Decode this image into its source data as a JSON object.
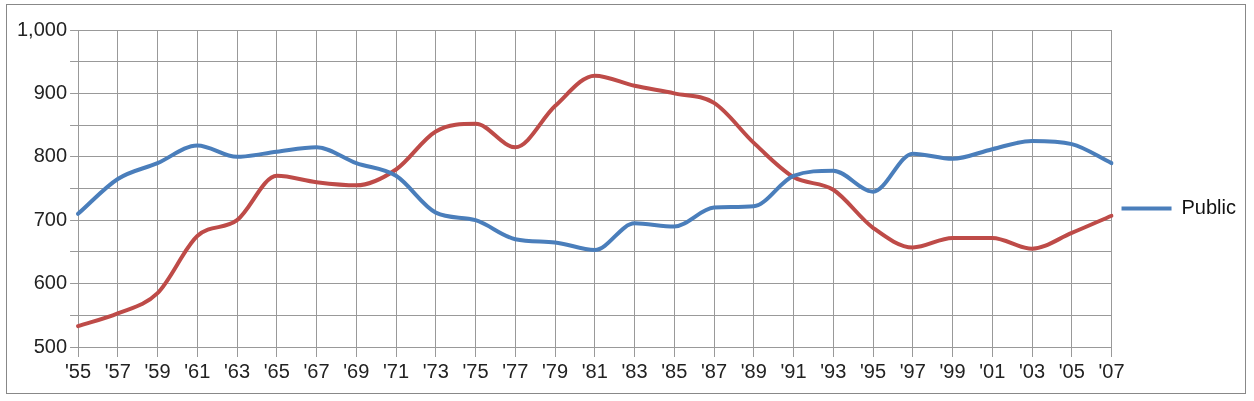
{
  "chart_data": {
    "type": "line",
    "categories": [
      "'55",
      "'57",
      "'59",
      "'61",
      "'63",
      "'65",
      "'67",
      "'69",
      "'71",
      "'73",
      "'75",
      "'77",
      "'79",
      "'81",
      "'83",
      "'85",
      "'87",
      "'89",
      "'91",
      "'93",
      "'95",
      "'97",
      "'99",
      "'01",
      "'03",
      "'05",
      "'07"
    ],
    "series": [
      {
        "name": "Public",
        "color": "#4a7ebb",
        "values": [
          710,
          765,
          790,
          818,
          800,
          808,
          815,
          790,
          770,
          712,
          700,
          670,
          665,
          653,
          695,
          690,
          720,
          722,
          770,
          778,
          745,
          805,
          797,
          812,
          825,
          820,
          790
        ]
      },
      {
        "color": "#be4b48",
        "values": [
          533,
          553,
          585,
          675,
          700,
          770,
          760,
          755,
          780,
          840,
          852,
          815,
          880,
          928,
          912,
          900,
          885,
          822,
          768,
          748,
          688,
          657,
          672,
          672,
          655,
          680,
          707
        ]
      }
    ],
    "ylim": [
      500,
      1000
    ],
    "yticks": [
      500,
      {
        "value": 550,
        "label": null
      },
      600,
      {
        "value": 650,
        "label": null
      },
      700,
      {
        "value": 750,
        "label": null
      },
      800,
      {
        "value": 850,
        "label": null
      },
      900,
      {
        "value": 950,
        "label": null
      },
      {
        "value": 1000,
        "label": "1,000"
      }
    ],
    "grid": true,
    "legend": "right",
    "marker": "none",
    "line_style": "solid"
  }
}
